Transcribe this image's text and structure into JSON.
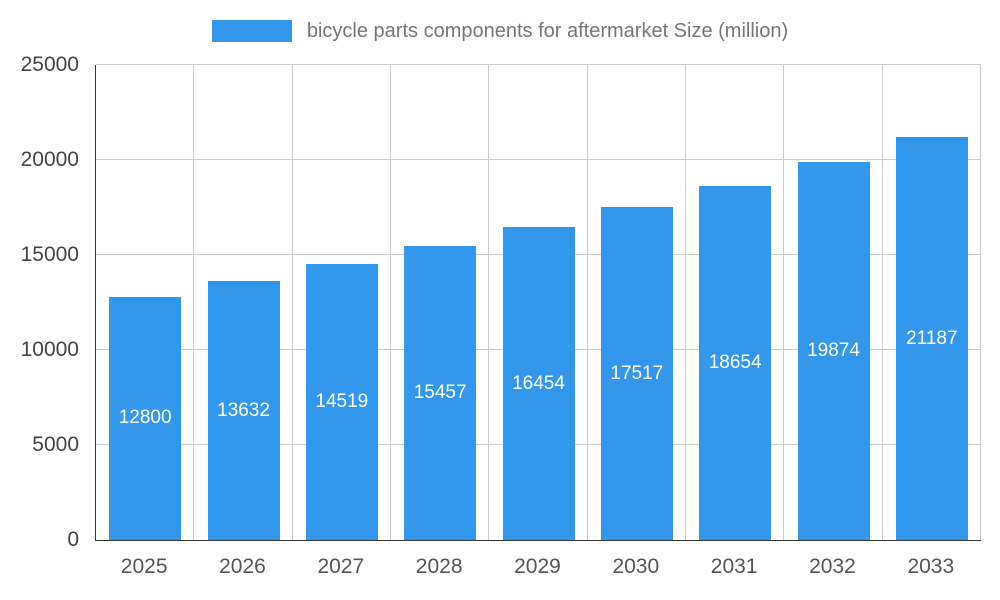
{
  "chart_data": {
    "type": "bar",
    "title": "bicycle parts components for aftermarket Size (million)",
    "categories": [
      "2025",
      "2026",
      "2027",
      "2028",
      "2029",
      "2030",
      "2031",
      "2032",
      "2033"
    ],
    "values": [
      12800,
      13632,
      14519,
      15457,
      16454,
      17517,
      18654,
      19874,
      21187
    ],
    "xlabel": "",
    "ylabel": "",
    "ylim": [
      0,
      25000
    ],
    "yticks": [
      0,
      5000,
      10000,
      15000,
      20000,
      25000
    ],
    "grid": true,
    "legend_position": "top",
    "bar_color": "#3398eb",
    "bar_label_color": "#ffffff",
    "gridline_color": "#cccccc",
    "axis_line_color": "#333333",
    "tick_label_color": "#444444"
  }
}
